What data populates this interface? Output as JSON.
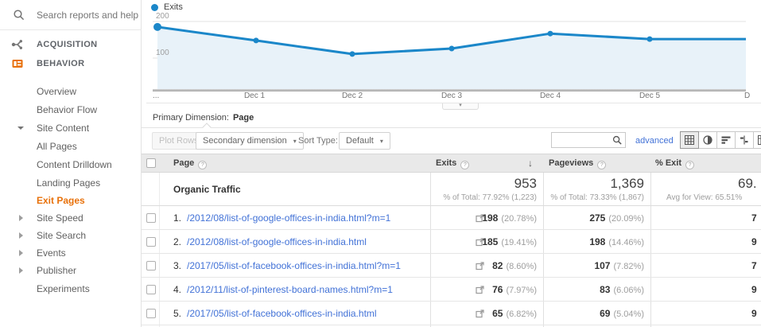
{
  "colors": {
    "accent_orange": "#e8710a",
    "link_blue": "#4272d7",
    "chart_blue": "#1b87c9"
  },
  "icons": {
    "help": "?",
    "sort_desc": "↓",
    "caret_down": "▾"
  },
  "sidebar": {
    "search_label": "Search reports and help",
    "sections": [
      {
        "label": "ACQUISITION",
        "active": false
      },
      {
        "label": "BEHAVIOR",
        "active": true
      }
    ],
    "items": [
      {
        "label": "Overview"
      },
      {
        "label": "Behavior Flow"
      },
      {
        "label": "Site Content",
        "expanded": true
      },
      {
        "label": "All Pages"
      },
      {
        "label": "Content Drilldown"
      },
      {
        "label": "Landing Pages"
      },
      {
        "label": "Exit Pages",
        "active": true
      },
      {
        "label": "Site Speed",
        "collapsed": true
      },
      {
        "label": "Site Search",
        "collapsed": true
      },
      {
        "label": "Events",
        "collapsed": true
      },
      {
        "label": "Publisher",
        "collapsed": true
      },
      {
        "label": "Experiments"
      }
    ]
  },
  "chart_data": {
    "type": "area",
    "legend": "Exits",
    "series": [
      {
        "name": "Exits",
        "values": [
          185,
          148,
          111,
          126,
          167,
          152,
          152
        ]
      }
    ],
    "x_axis_labels": [
      "...",
      "Dec 1",
      "Dec 2",
      "Dec 3",
      "Dec 4",
      "Dec 5",
      "D"
    ],
    "y_tick_labels": [
      "200",
      "100"
    ],
    "y_ticks": [
      200,
      100
    ],
    "ylim": [
      15,
      220
    ],
    "grid": "horizontal-only",
    "legend_position": "top-left",
    "line_color": "#1b87c9",
    "fill_color": "#e8f2f9",
    "note": "right edge clipped; last x label 'D' is cut off by viewport"
  },
  "primary_dimension": {
    "label": "Primary Dimension:",
    "value": "Page"
  },
  "toolbar": {
    "plot_rows_label": "Plot Rows",
    "secondary_dimension_label": "Secondary dimension",
    "sort_type_label": "Sort Type:",
    "sort_type_value": "Default",
    "search_value": "",
    "advanced_label": "advanced"
  },
  "table": {
    "columns": {
      "page": "Page",
      "exits": "Exits",
      "pageviews": "Pageviews",
      "percent_exit": "% Exit"
    },
    "summary": {
      "label": "Organic Traffic",
      "exits": "953",
      "exits_sub": "% of Total: 77.92% (1,223)",
      "pageviews": "1,369",
      "pageviews_sub": "% of Total: 73.33% (1,867)",
      "percent_exit": "69.",
      "percent_exit_sub": "Avg for View: 65.51%"
    },
    "rows": [
      {
        "index": "1.",
        "page": "/2012/08/list-of-google-offices-in-india.html?m=1",
        "exits": "198",
        "exits_pct": "(20.78%)",
        "pageviews": "275",
        "pageviews_pct": "(20.09%)",
        "percent_exit": "7"
      },
      {
        "index": "2.",
        "page": "/2012/08/list-of-google-offices-in-india.html",
        "exits": "185",
        "exits_pct": "(19.41%)",
        "pageviews": "198",
        "pageviews_pct": "(14.46%)",
        "percent_exit": "9"
      },
      {
        "index": "3.",
        "page": "/2017/05/list-of-facebook-offices-in-india.html?m=1",
        "exits": "82",
        "exits_pct": "(8.60%)",
        "pageviews": "107",
        "pageviews_pct": "(7.82%)",
        "percent_exit": "7"
      },
      {
        "index": "4.",
        "page": "/2012/11/list-of-pinterest-board-names.html?m=1",
        "exits": "76",
        "exits_pct": "(7.97%)",
        "pageviews": "83",
        "pageviews_pct": "(6.06%)",
        "percent_exit": "9"
      },
      {
        "index": "5.",
        "page": "/2017/05/list-of-facebook-offices-in-india.html",
        "exits": "65",
        "exits_pct": "(6.82%)",
        "pageviews": "69",
        "pageviews_pct": "(5.04%)",
        "percent_exit": "9"
      }
    ]
  }
}
